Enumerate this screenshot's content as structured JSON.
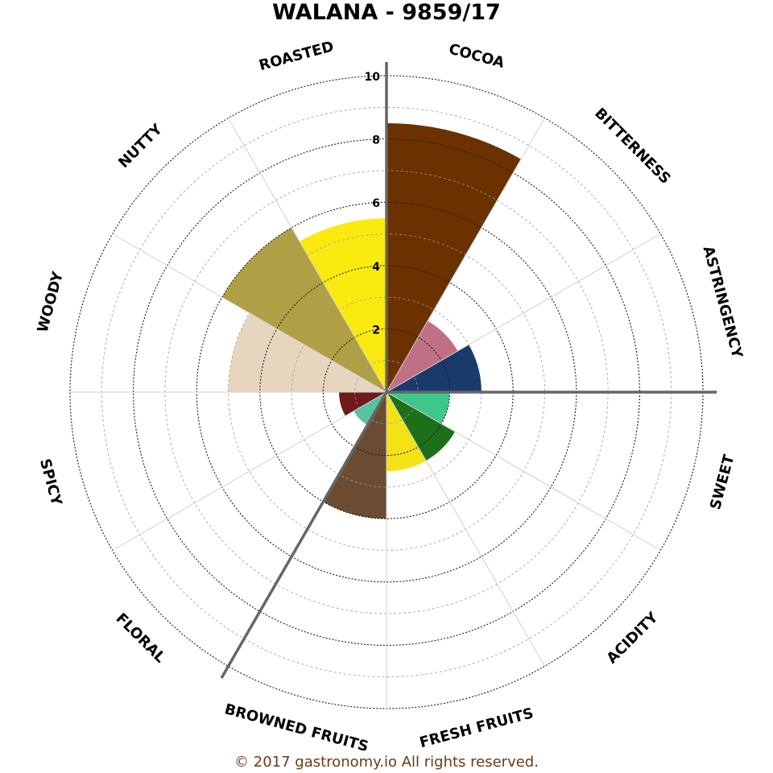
{
  "chart_data": {
    "type": "polar-bar",
    "title": "WALANA - 9859/17",
    "footer": "© 2017 gastronomy.io All rights reserved.",
    "rlim": [
      0,
      10
    ],
    "r_ticks": [
      "2",
      "4",
      "6",
      "8",
      "10"
    ],
    "grid": true,
    "categories": [
      "COCOA",
      "BITTERNESS",
      "ASTRINGENCY",
      "SWEET",
      "ACIDITY",
      "FRESH FRUITS",
      "BROWNED FRUITS",
      "FLORAL",
      "SPICY",
      "WOODY",
      "NUTTY",
      "ROASTED"
    ],
    "wedges": [
      {
        "label": "COCOA",
        "start_deg": 0,
        "end_deg": 30,
        "value": 8.5,
        "color": "#6b3200"
      },
      {
        "label": "",
        "start_deg": 30,
        "end_deg": 60,
        "value": 2.6,
        "color": "#c07085"
      },
      {
        "label": "",
        "start_deg": 60,
        "end_deg": 90,
        "value": 3.0,
        "color": "#1a3a6b"
      },
      {
        "label": "",
        "start_deg": 90,
        "end_deg": 120,
        "value": 2.0,
        "color": "#3ec78a"
      },
      {
        "label": "",
        "start_deg": 120,
        "end_deg": 150,
        "value": 2.5,
        "color": "#1e6f1a"
      },
      {
        "label": "",
        "start_deg": 150,
        "end_deg": 180,
        "value": 2.5,
        "color": "#f5e216"
      },
      {
        "label": "",
        "start_deg": 180,
        "end_deg": 210,
        "value": 4.0,
        "color": "#6b4c33"
      },
      {
        "label": "",
        "start_deg": 210,
        "end_deg": 240,
        "value": 1.2,
        "color": "#56c4a0"
      },
      {
        "label": "",
        "start_deg": 240,
        "end_deg": 270,
        "value": 1.5,
        "color": "#6e1a1a"
      },
      {
        "label": "",
        "start_deg": 270,
        "end_deg": 300,
        "value": 5.0,
        "color": "#e8d5c0"
      },
      {
        "label": "",
        "start_deg": 300,
        "end_deg": 330,
        "value": 6.0,
        "color": "#b0a045"
      },
      {
        "label": "",
        "start_deg": 330,
        "end_deg": 360,
        "value": 5.5,
        "color": "#fbea10"
      }
    ],
    "axis_lines_deg": [
      0,
      90,
      210
    ],
    "label_angles_deg": [
      15,
      45,
      75,
      105,
      135,
      165,
      195,
      225,
      255,
      285,
      315,
      345
    ]
  }
}
